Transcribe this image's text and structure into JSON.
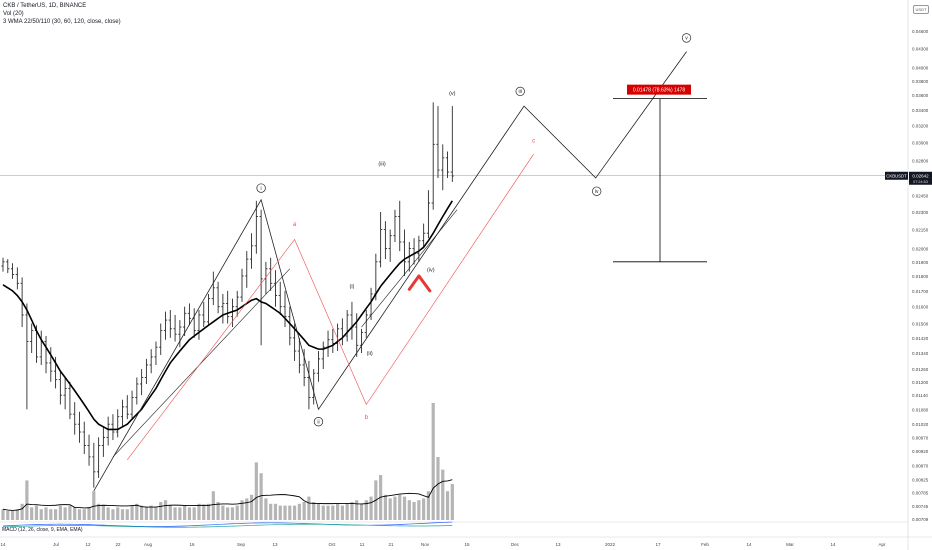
{
  "header": {
    "symbol_line": "CKB / TetherUS, 1D, BINANCE",
    "volume_line": "Vol (20)",
    "indicator_line": "3 WMA 22/50/110 (30, 60, 120, close, close)",
    "currency_badge": "USDT"
  },
  "macd_label": "MACD (12, 26, close, 9, EMA, EMA)",
  "price_label": {
    "ticker": "CKBUSDT",
    "price": "0.02642",
    "countdown": "07:24:53"
  },
  "colors": {
    "candle": "#2b2b2b",
    "ma": "#000000",
    "wave": "#222222",
    "abc": "#f04e4e",
    "volume": "#b5b5b5",
    "measure_box": "#d50000",
    "macd_line": "#2962ff",
    "signal_line": "#26a69a"
  },
  "chart_data": {
    "type": "candlestick",
    "y_axis_ticks": [
      "0.04600",
      "0.04300",
      "0.04000",
      "0.03800",
      "0.03600",
      "0.03400",
      "0.03200",
      "0.03000",
      "0.02800",
      "0.02600",
      "0.02450",
      "0.02300",
      "0.02150",
      "0.02000",
      "0.01900",
      "0.01800",
      "0.01700",
      "0.01600",
      "0.01500",
      "0.01420",
      "0.01340",
      "0.01260",
      "0.01200",
      "0.01140",
      "0.01080",
      "0.01020",
      "0.00970",
      "0.00920",
      "0.00870",
      "0.00825",
      "0.00785",
      "0.00745",
      "0.00709",
      "0.00675"
    ],
    "x_axis_ticks": [
      "14",
      "Jul",
      "12",
      "22",
      "Aug",
      "16",
      "Sep",
      "13",
      "Oct",
      "11",
      "21",
      "Nov",
      "15",
      "Dec",
      "13",
      "2022",
      "17",
      "Feb",
      "14",
      "Mar",
      "14",
      "Apr"
    ],
    "last_price": 0.02642,
    "ohlc": [
      [
        0.0187,
        0.0193,
        0.0183,
        0.019
      ],
      [
        0.019,
        0.0192,
        0.0182,
        0.0185
      ],
      [
        0.0185,
        0.0189,
        0.0178,
        0.0181
      ],
      [
        0.0181,
        0.0186,
        0.0171,
        0.0175
      ],
      [
        0.0175,
        0.0179,
        0.0148,
        0.0155
      ],
      [
        0.0155,
        0.0162,
        0.0108,
        0.014
      ],
      [
        0.014,
        0.015,
        0.0134,
        0.0146
      ],
      [
        0.0146,
        0.0149,
        0.0129,
        0.0132
      ],
      [
        0.0132,
        0.0146,
        0.0128,
        0.014
      ],
      [
        0.014,
        0.0143,
        0.0124,
        0.0129
      ],
      [
        0.0129,
        0.0137,
        0.012,
        0.0125
      ],
      [
        0.0125,
        0.0132,
        0.0117,
        0.0121
      ],
      [
        0.0121,
        0.0125,
        0.011,
        0.0114
      ],
      [
        0.0114,
        0.0122,
        0.0108,
        0.0117
      ],
      [
        0.0117,
        0.012,
        0.0104,
        0.0106
      ],
      [
        0.0106,
        0.0111,
        0.0098,
        0.0102
      ],
      [
        0.0102,
        0.0107,
        0.0095,
        0.0099
      ],
      [
        0.0099,
        0.0103,
        0.0091,
        0.0094
      ],
      [
        0.0094,
        0.0098,
        0.0087,
        0.009
      ],
      [
        0.009,
        0.0095,
        0.008,
        0.0085
      ],
      [
        0.0085,
        0.0097,
        0.0083,
        0.0094
      ],
      [
        0.0094,
        0.0101,
        0.009,
        0.0097
      ],
      [
        0.0097,
        0.0105,
        0.0094,
        0.0102
      ],
      [
        0.0102,
        0.0106,
        0.0096,
        0.0099
      ],
      [
        0.0099,
        0.0108,
        0.0097,
        0.0105
      ],
      [
        0.0105,
        0.0112,
        0.0101,
        0.0109
      ],
      [
        0.0109,
        0.0114,
        0.0104,
        0.0106
      ],
      [
        0.0106,
        0.0116,
        0.0104,
        0.0113
      ],
      [
        0.0113,
        0.0122,
        0.011,
        0.0119
      ],
      [
        0.0119,
        0.0126,
        0.0114,
        0.0122
      ],
      [
        0.0122,
        0.0131,
        0.0119,
        0.0128
      ],
      [
        0.0128,
        0.0136,
        0.0124,
        0.0132
      ],
      [
        0.0132,
        0.014,
        0.0128,
        0.0137
      ],
      [
        0.0137,
        0.015,
        0.0133,
        0.0146
      ],
      [
        0.0146,
        0.0157,
        0.0141,
        0.0152
      ],
      [
        0.0152,
        0.0158,
        0.0142,
        0.0147
      ],
      [
        0.0147,
        0.0155,
        0.014,
        0.0144
      ],
      [
        0.0144,
        0.0152,
        0.0137,
        0.0148
      ],
      [
        0.0148,
        0.016,
        0.0143,
        0.0156
      ],
      [
        0.0156,
        0.0162,
        0.0149,
        0.0153
      ],
      [
        0.0153,
        0.0159,
        0.0142,
        0.0146
      ],
      [
        0.0146,
        0.0158,
        0.0141,
        0.0155
      ],
      [
        0.0155,
        0.0163,
        0.0148,
        0.0151
      ],
      [
        0.0151,
        0.0168,
        0.0149,
        0.0165
      ],
      [
        0.0165,
        0.0183,
        0.0161,
        0.0172
      ],
      [
        0.0172,
        0.0176,
        0.0156,
        0.016
      ],
      [
        0.016,
        0.0168,
        0.015,
        0.0162
      ],
      [
        0.0162,
        0.017,
        0.015,
        0.0154
      ],
      [
        0.0154,
        0.0165,
        0.0148,
        0.016
      ],
      [
        0.016,
        0.017,
        0.0154,
        0.0166
      ],
      [
        0.0166,
        0.0185,
        0.0163,
        0.018
      ],
      [
        0.018,
        0.0198,
        0.0172,
        0.0192
      ],
      [
        0.0192,
        0.0212,
        0.0185,
        0.0202
      ],
      [
        0.0202,
        0.024,
        0.0196,
        0.0226
      ],
      [
        0.0226,
        0.0232,
        0.0138,
        0.0178
      ],
      [
        0.0178,
        0.019,
        0.0168,
        0.0185
      ],
      [
        0.0185,
        0.0193,
        0.017,
        0.0175
      ],
      [
        0.0175,
        0.0184,
        0.016,
        0.0167
      ],
      [
        0.0167,
        0.0176,
        0.0155,
        0.016
      ],
      [
        0.016,
        0.017,
        0.0148,
        0.0154
      ],
      [
        0.0154,
        0.016,
        0.0138,
        0.0142
      ],
      [
        0.0142,
        0.015,
        0.013,
        0.0135
      ],
      [
        0.0135,
        0.0142,
        0.0124,
        0.0128
      ],
      [
        0.0128,
        0.0136,
        0.0118,
        0.0122
      ],
      [
        0.0122,
        0.013,
        0.0108,
        0.0113
      ],
      [
        0.0113,
        0.0126,
        0.011,
        0.0124
      ],
      [
        0.0124,
        0.0135,
        0.012,
        0.0131
      ],
      [
        0.0131,
        0.014,
        0.0126,
        0.0137
      ],
      [
        0.0137,
        0.0146,
        0.0132,
        0.0141
      ],
      [
        0.0141,
        0.0147,
        0.0134,
        0.0139
      ],
      [
        0.0139,
        0.015,
        0.0135,
        0.0147
      ],
      [
        0.0147,
        0.0153,
        0.0138,
        0.0143
      ],
      [
        0.0143,
        0.0158,
        0.014,
        0.0155
      ],
      [
        0.0155,
        0.0163,
        0.0141,
        0.0148
      ],
      [
        0.0148,
        0.0156,
        0.0132,
        0.0138
      ],
      [
        0.0138,
        0.0147,
        0.0134,
        0.0145
      ],
      [
        0.0145,
        0.0158,
        0.0142,
        0.0155
      ],
      [
        0.0155,
        0.0172,
        0.0152,
        0.0168
      ],
      [
        0.0168,
        0.0196,
        0.0164,
        0.019
      ],
      [
        0.019,
        0.023,
        0.0186,
        0.0215
      ],
      [
        0.0215,
        0.0222,
        0.0192,
        0.02
      ],
      [
        0.02,
        0.0215,
        0.019,
        0.021
      ],
      [
        0.021,
        0.0232,
        0.0205,
        0.0226
      ],
      [
        0.0226,
        0.024,
        0.0198,
        0.0205
      ],
      [
        0.0205,
        0.0215,
        0.018,
        0.019
      ],
      [
        0.019,
        0.0205,
        0.0183,
        0.02
      ],
      [
        0.02,
        0.0208,
        0.0188,
        0.0196
      ],
      [
        0.0196,
        0.021,
        0.019,
        0.0206
      ],
      [
        0.0206,
        0.022,
        0.02,
        0.0212
      ],
      [
        0.0212,
        0.025,
        0.0208,
        0.0238
      ],
      [
        0.0238,
        0.035,
        0.0232,
        0.0298
      ],
      [
        0.0298,
        0.0345,
        0.0262,
        0.027
      ],
      [
        0.027,
        0.0298,
        0.025,
        0.0283
      ],
      [
        0.0283,
        0.029,
        0.0262,
        0.0268
      ],
      [
        0.0268,
        0.0345,
        0.0258,
        0.0264
      ]
    ],
    "moving_average": [
      0.0174,
      0.0172,
      0.017,
      0.0167,
      0.0163,
      0.0158,
      0.0152,
      0.0146,
      0.0141,
      0.0137,
      0.0133,
      0.0129,
      0.0125,
      0.0122,
      0.0119,
      0.0116,
      0.0113,
      0.011,
      0.0107,
      0.0104,
      0.0102,
      0.0101,
      0.01,
      0.01,
      0.01,
      0.0101,
      0.0102,
      0.0104,
      0.0106,
      0.0108,
      0.0111,
      0.0114,
      0.0117,
      0.0121,
      0.0125,
      0.0129,
      0.0132,
      0.0135,
      0.0138,
      0.0141,
      0.0143,
      0.0145,
      0.0147,
      0.0149,
      0.0151,
      0.0153,
      0.0155,
      0.0156,
      0.0157,
      0.0158,
      0.016,
      0.0162,
      0.0164,
      0.0165,
      0.0163,
      0.0162,
      0.016,
      0.0158,
      0.0156,
      0.0153,
      0.015,
      0.0147,
      0.0144,
      0.0141,
      0.0138,
      0.0137,
      0.0136,
      0.0136,
      0.0137,
      0.0138,
      0.014,
      0.0142,
      0.0145,
      0.0148,
      0.0151,
      0.0155,
      0.0159,
      0.0163,
      0.0168,
      0.0173,
      0.0177,
      0.0181,
      0.0185,
      0.0189,
      0.0192,
      0.0194,
      0.0196,
      0.0198,
      0.0201,
      0.0206,
      0.0212,
      0.0219,
      0.0226,
      0.0233,
      0.024
    ],
    "volume": [
      0.6,
      0.5,
      0.5,
      0.6,
      0.9,
      2.2,
      0.7,
      0.8,
      0.6,
      0.7,
      0.6,
      0.6,
      0.8,
      0.7,
      0.8,
      0.7,
      0.6,
      0.6,
      0.7,
      1.6,
      0.9,
      0.8,
      0.7,
      0.6,
      0.7,
      0.6,
      0.6,
      0.8,
      0.9,
      0.8,
      0.7,
      0.8,
      0.7,
      1.0,
      1.1,
      0.8,
      0.7,
      0.7,
      0.8,
      0.7,
      0.7,
      0.9,
      0.8,
      0.9,
      1.6,
      1.0,
      0.8,
      0.7,
      0.7,
      0.8,
      1.1,
      1.2,
      1.4,
      3.2,
      2.6,
      1.2,
      0.9,
      0.9,
      0.8,
      0.8,
      0.8,
      0.8,
      0.9,
      1.0,
      1.3,
      1.0,
      0.9,
      0.8,
      0.8,
      0.8,
      0.9,
      0.8,
      0.9,
      1.0,
      1.1,
      0.9,
      1.1,
      1.3,
      2.2,
      2.5,
      1.4,
      1.2,
      1.3,
      1.4,
      1.3,
      1.1,
      1.0,
      1.1,
      1.2,
      1.6,
      6.5,
      3.5,
      2.8,
      1.6,
      2.0
    ],
    "wave_labels": [
      "i",
      "ii",
      "iii",
      "iv",
      "v",
      "(i)",
      "(ii)",
      "(iii)",
      "(iv)",
      "(v)"
    ],
    "abc_labels": [
      "a",
      "b",
      "c"
    ],
    "measure_label": "0.01478 (78.63%) 1478"
  }
}
